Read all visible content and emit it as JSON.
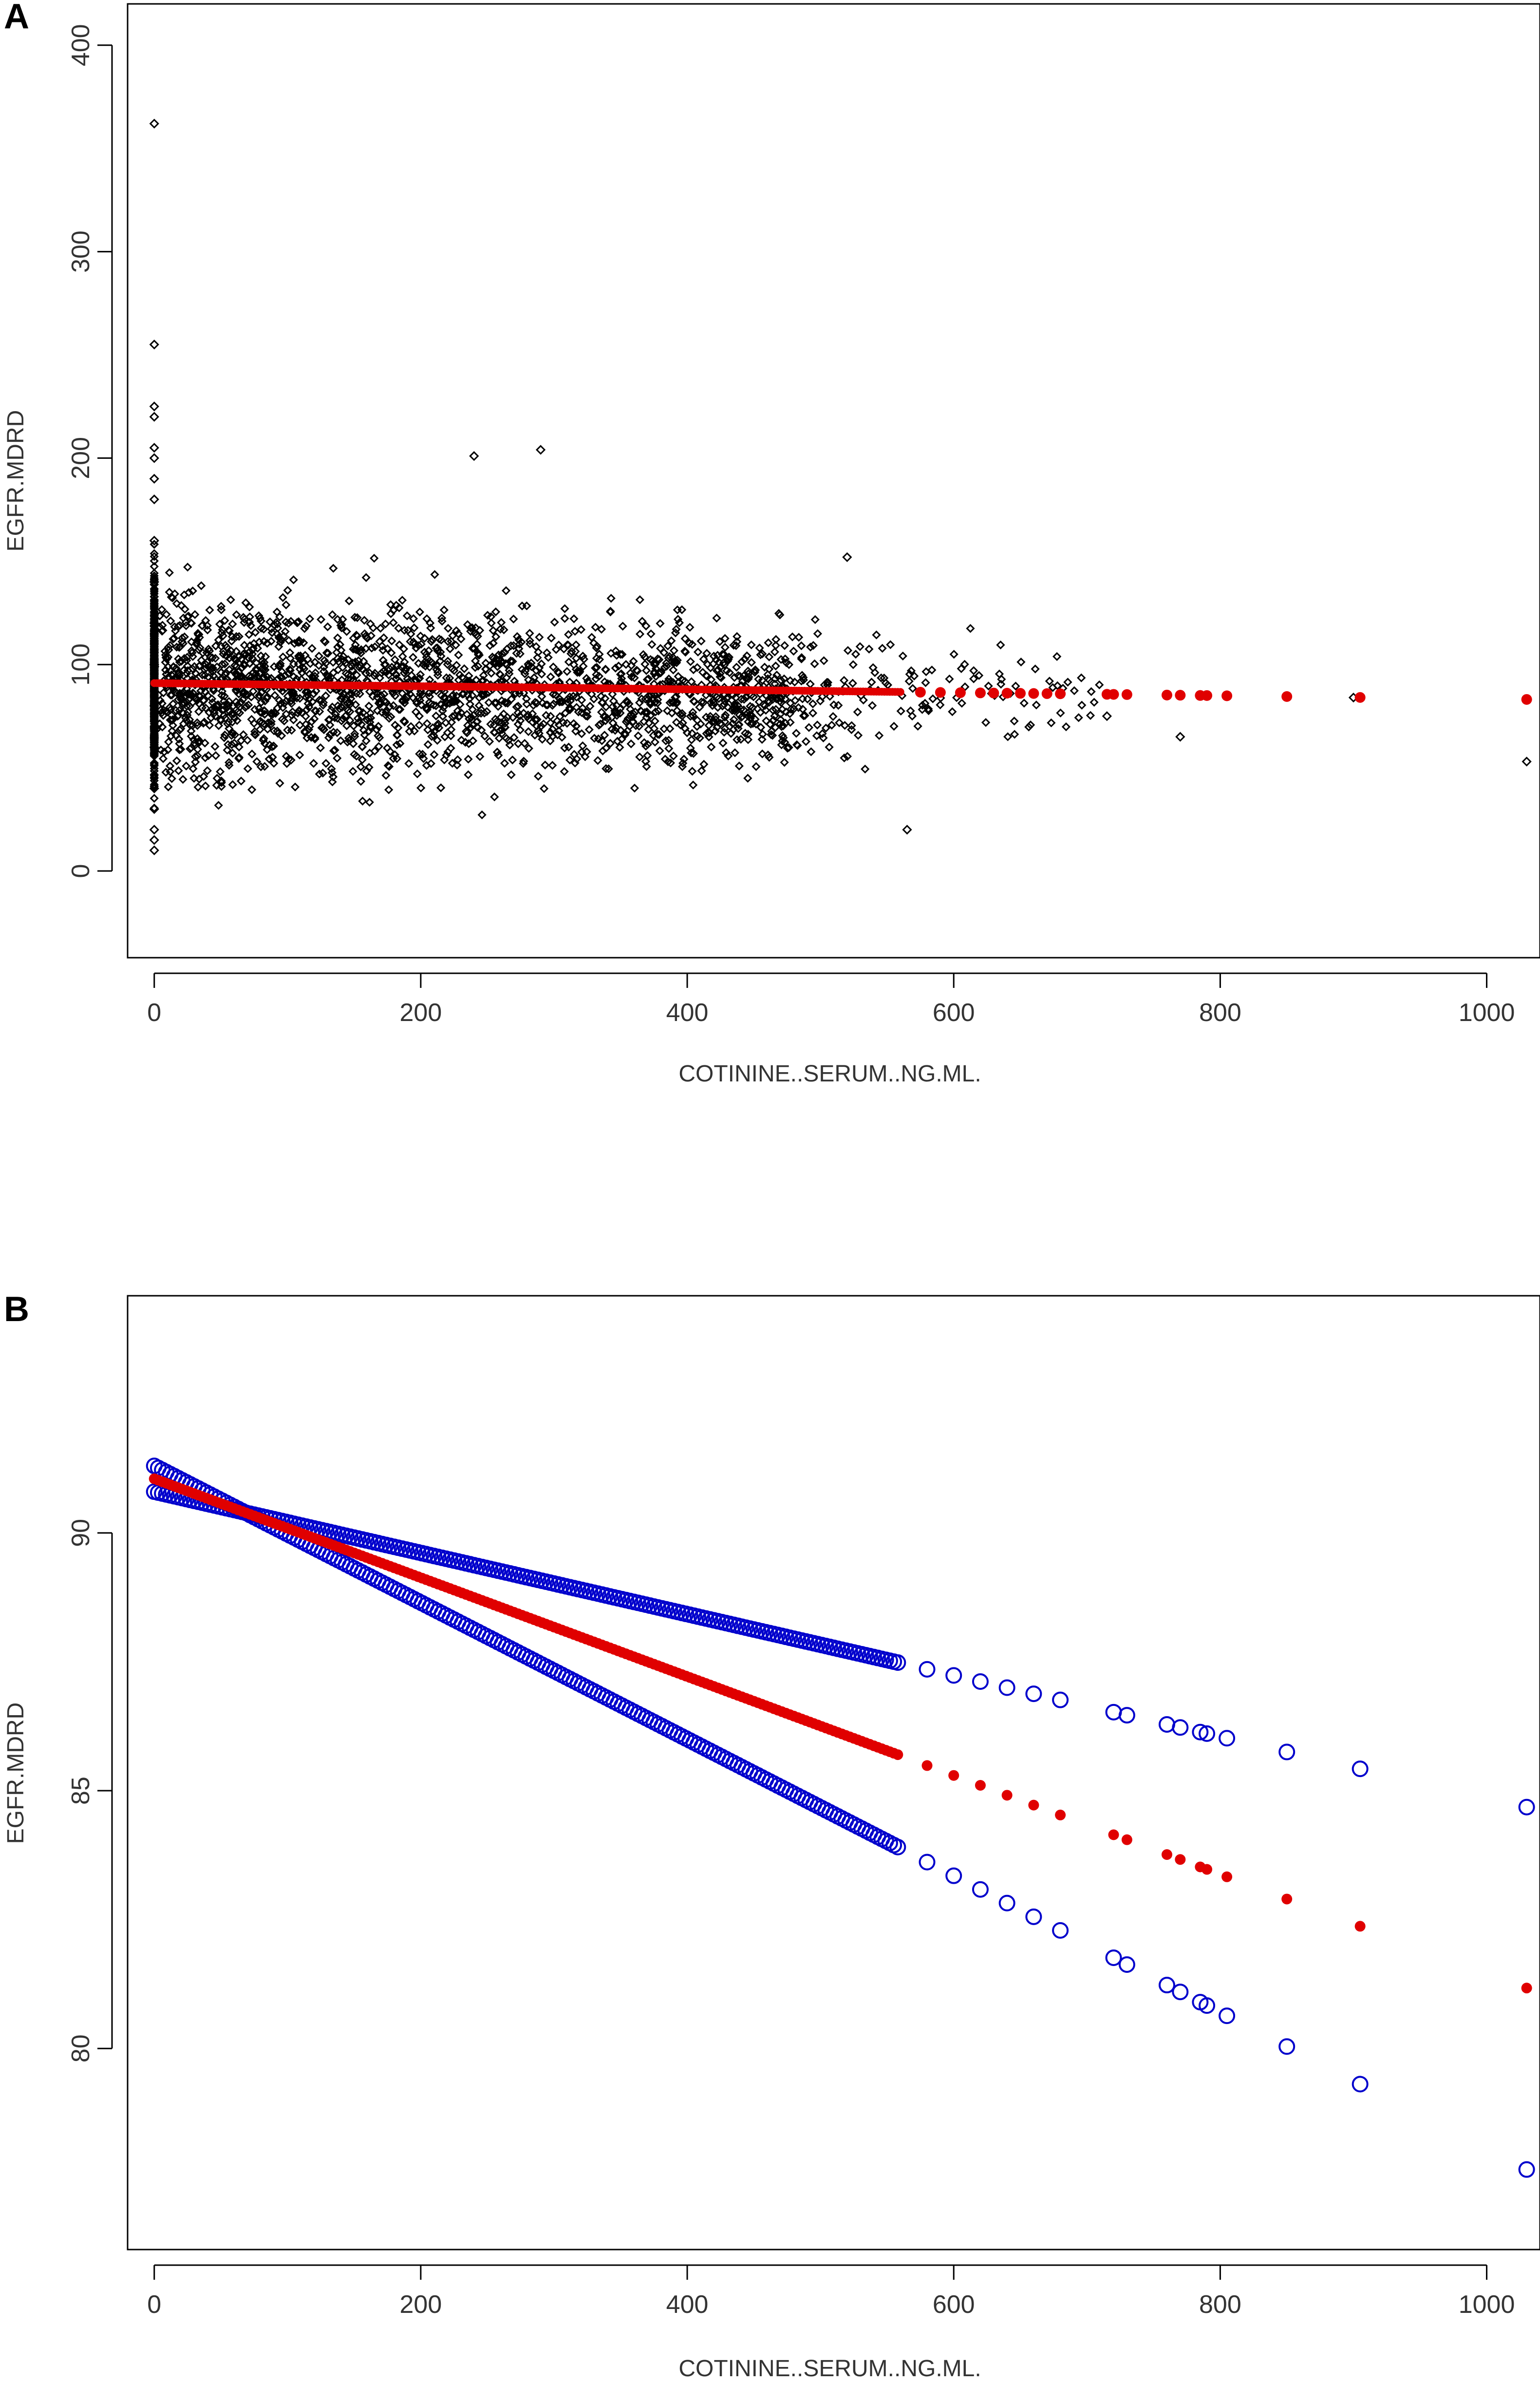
{
  "chart_data": [
    {
      "panel": "A",
      "type": "scatter",
      "xlabel": "COTININE..SERUM..NG.ML.",
      "ylabel": "EGFR.MDRD",
      "xlim": [
        -20,
        1040
      ],
      "ylim": [
        -42,
        420
      ],
      "xticks": [
        0,
        200,
        400,
        600,
        800,
        1000
      ],
      "yticks": [
        0,
        100,
        200,
        300,
        400
      ],
      "grid": false,
      "colors": {
        "points": "#000000",
        "fit": "#e00000"
      },
      "observed_sample_at_zero": [
        10,
        15,
        20,
        30,
        40,
        60,
        80,
        100,
        120,
        140,
        160,
        180,
        190,
        200,
        205,
        220,
        225,
        255,
        362
      ],
      "observed_outliers": [
        {
          "x": 240,
          "y": 201
        },
        {
          "x": 290,
          "y": 204
        },
        {
          "x": 520,
          "y": 152
        },
        {
          "x": 565,
          "y": 20
        },
        {
          "x": 1030,
          "y": 53
        },
        {
          "x": 900,
          "y": 84
        },
        {
          "x": 770,
          "y": 65
        },
        {
          "x": 715,
          "y": 75
        }
      ],
      "fit_line": {
        "x": [
          0,
          100,
          200,
          300,
          400,
          500,
          600,
          700,
          800,
          850,
          900,
          1030
        ],
        "y": [
          91,
          90.2,
          89.5,
          88.8,
          88.0,
          87.2,
          86.4,
          85.7,
          84.9,
          84.5,
          84.1,
          83.1
        ]
      }
    },
    {
      "panel": "B",
      "type": "line",
      "xlabel": "COTININE..SERUM..NG.ML.",
      "ylabel": "EGFR.MDRD",
      "xlim": [
        -20,
        1040
      ],
      "ylim": [
        76.1,
        94.6
      ],
      "xticks": [
        0,
        200,
        400,
        600,
        800,
        1000
      ],
      "yticks": [
        80,
        85,
        90
      ],
      "grid": false,
      "colors": {
        "fit": "#e00000",
        "ci": "#0000cc"
      },
      "x": [
        0,
        5,
        10,
        20,
        30,
        50,
        75,
        100,
        150,
        200,
        250,
        300,
        350,
        400,
        450,
        500,
        550,
        580,
        600,
        620,
        640,
        660,
        680,
        720,
        730,
        760,
        770,
        785,
        790,
        805,
        850,
        905,
        1030
      ],
      "series": [
        {
          "role": "fit",
          "intercept": 91.05,
          "slope": -0.00959
        },
        {
          "role": "ci-upper",
          "intercept": 90.8,
          "slope": -0.00594,
          "intercept_at_zero_max": 91.25
        },
        {
          "role": "ci-lower",
          "intercept": 91.3,
          "slope": -0.01325,
          "intercept_at_zero_min": 90.8
        }
      ]
    }
  ],
  "panels": {
    "a": {
      "letter": "A",
      "xlabel": "COTININE..SERUM..NG.ML.",
      "ylabel": "EGFR.MDRD"
    },
    "b": {
      "letter": "B",
      "xlabel": "COTININE..SERUM..NG.ML.",
      "ylabel": "EGFR.MDRD"
    }
  },
  "tick_text": {
    "a_x": [
      "0",
      "200",
      "400",
      "600",
      "800",
      "1000"
    ],
    "a_y": [
      "0",
      "100",
      "200",
      "300",
      "400"
    ],
    "b_x": [
      "0",
      "200",
      "400",
      "600",
      "800",
      "1000"
    ],
    "b_y": [
      "80",
      "85",
      "90"
    ]
  }
}
